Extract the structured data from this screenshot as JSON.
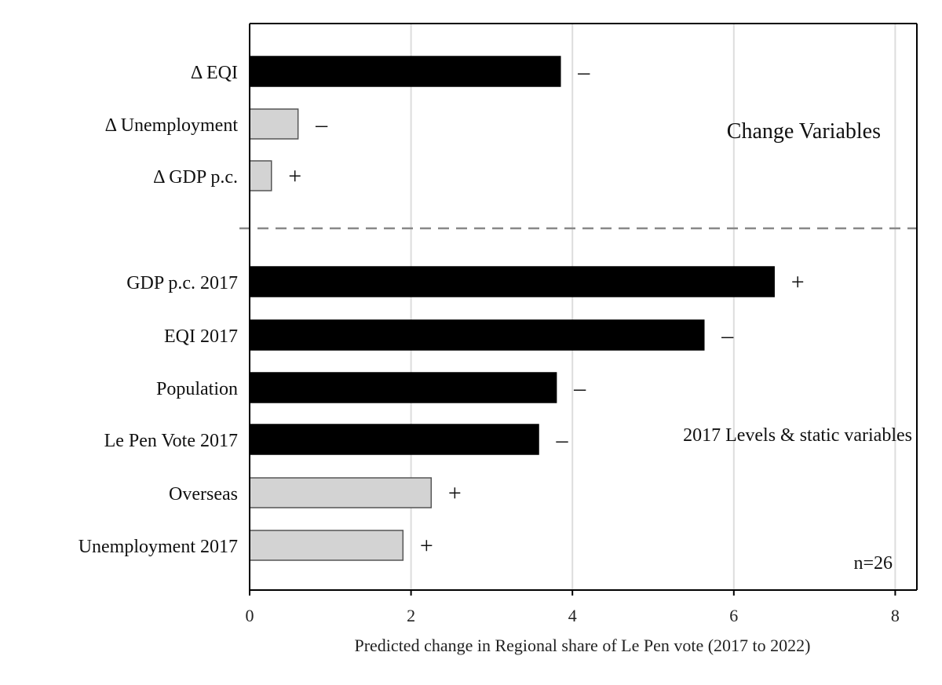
{
  "chart_data": {
    "type": "bar",
    "orientation": "horizontal",
    "xlabel": "Predicted change in Regional share of Le Pen vote (2017 to 2022)",
    "xlim": [
      0,
      8.3
    ],
    "xticks": [
      0,
      2,
      4,
      6,
      8
    ],
    "grid": true,
    "groups": [
      {
        "label": "Change Variables",
        "bars": [
          {
            "category": "Δ EQI",
            "value": 3.85,
            "sign": "–",
            "style": "dark"
          },
          {
            "category": "Δ Unemployment",
            "value": 0.6,
            "sign": "–",
            "style": "light"
          },
          {
            "category": "Δ GDP p.c.",
            "value": 0.27,
            "sign": "+",
            "style": "light"
          }
        ]
      },
      {
        "label": "2017 Levels & static variables",
        "bars": [
          {
            "category": "GDP p.c. 2017",
            "value": 6.5,
            "sign": "+",
            "style": "dark"
          },
          {
            "category": "EQI 2017",
            "value": 5.63,
            "sign": "–",
            "style": "dark"
          },
          {
            "category": "Population",
            "value": 3.8,
            "sign": "–",
            "style": "dark"
          },
          {
            "category": "Le Pen Vote 2017",
            "value": 3.58,
            "sign": "–",
            "style": "dark"
          },
          {
            "category": "Overseas",
            "value": 2.25,
            "sign": "+",
            "style": "light"
          },
          {
            "category": "Unemployment 2017",
            "value": 1.9,
            "sign": "+",
            "style": "light"
          }
        ]
      }
    ],
    "annotation": "n=26"
  },
  "colors": {
    "dark": "#000000",
    "light": "#d3d3d3",
    "light_border": "#555555",
    "grid": "#dddddd",
    "axis": "#000000",
    "separator": "#888888"
  }
}
